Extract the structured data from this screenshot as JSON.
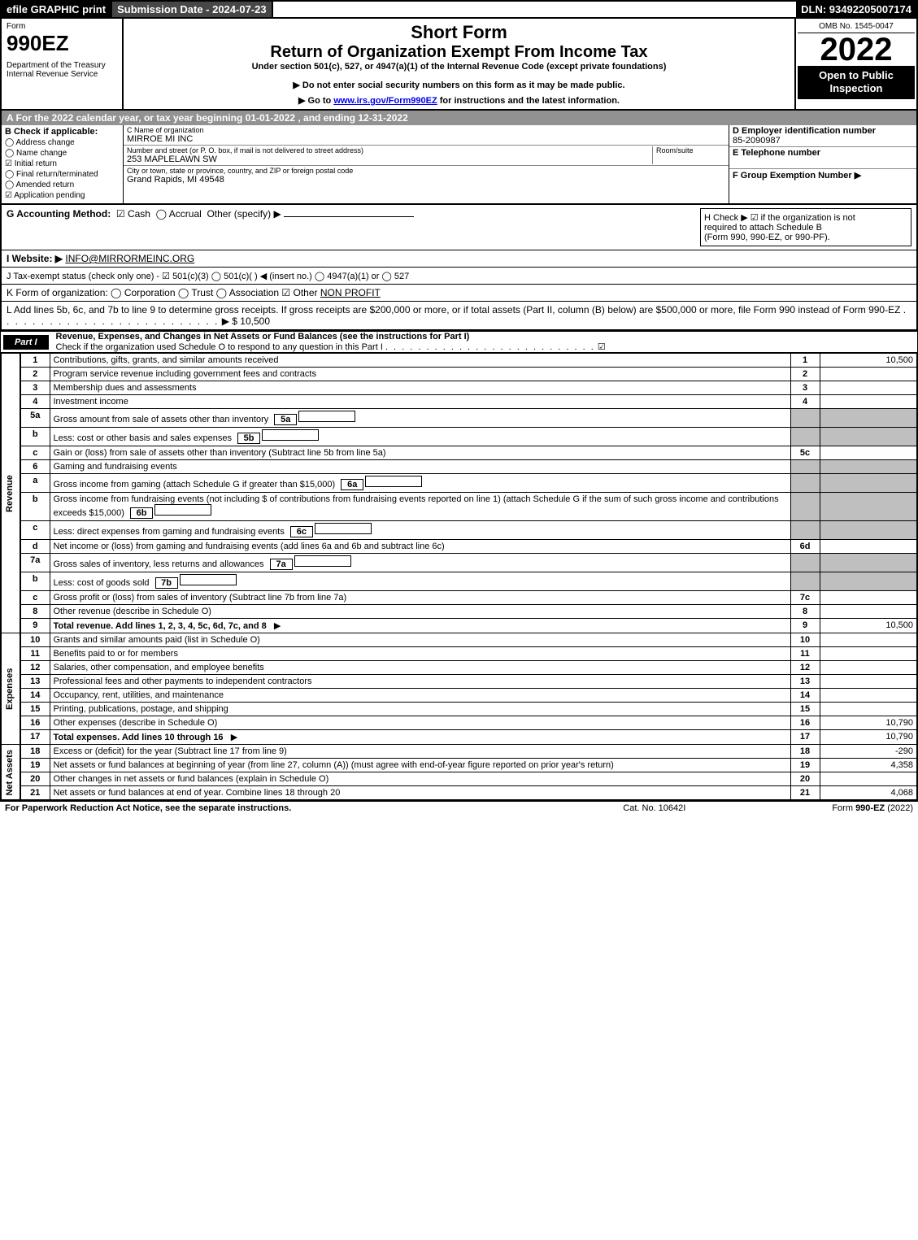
{
  "topbar": {
    "efile": "efile GRAPHIC print",
    "submission": "Submission Date - 2024-07-23",
    "dln": "DLN: 93492205007174"
  },
  "header": {
    "form_word": "Form",
    "form_number": "990EZ",
    "dept": "Department of the Treasury\nInternal Revenue Service",
    "title_short": "Short Form",
    "title_long": "Return of Organization Exempt From Income Tax",
    "subtitle": "Under section 501(c), 527, or 4947(a)(1) of the Internal Revenue Code (except private foundations)",
    "warn1": "▶ Do not enter social security numbers on this form as it may be made public.",
    "warn2": "▶ Go to www.irs.gov/Form990EZ for instructions and the latest information.",
    "omb": "OMB No. 1545-0047",
    "year": "2022",
    "badge": "Open to Public Inspection"
  },
  "section_a": "A  For the 2022 calendar year, or tax year beginning 01-01-2022 , and ending 12-31-2022",
  "b": {
    "title": "B  Check if applicable:",
    "opts": [
      "Address change",
      "Name change",
      "Initial return",
      "Final return/terminated",
      "Amended return",
      "Application pending"
    ],
    "checked": [
      false,
      false,
      true,
      false,
      false,
      true
    ]
  },
  "c": {
    "name_hint": "C Name of organization",
    "name": "MIRROE MI INC",
    "street_hint": "Number and street (or P. O. box, if mail is not delivered to street address)",
    "room_hint": "Room/suite",
    "street": "253 MAPLELAWN SW",
    "city_hint": "City or town, state or province, country, and ZIP or foreign postal code",
    "city": "Grand Rapids, MI  49548"
  },
  "d": {
    "ein_label": "D Employer identification number",
    "ein": "85-2090987",
    "tel_label": "E Telephone number",
    "grp_label": "F Group Exemption Number   ▶"
  },
  "g": {
    "label": "G Accounting Method:",
    "cash": "Cash",
    "accrual": "Accrual",
    "other": "Other (specify) ▶",
    "cash_checked": true
  },
  "h": {
    "text1": "H  Check ▶ ☑ if the organization is not",
    "text2": "required to attach Schedule B",
    "text3": "(Form 990, 990-EZ, or 990-PF)."
  },
  "i": {
    "label": "I Website: ▶",
    "value": "INFO@MIRRORMEINC.ORG"
  },
  "j": {
    "label": "J Tax-exempt status (check only one) - ☑ 501(c)(3) ◯ 501(c)(  ) ◀ (insert no.) ◯ 4947(a)(1) or ◯ 527"
  },
  "k": {
    "label": "K Form of organization:  ◯ Corporation  ◯ Trust  ◯ Association  ☑ Other",
    "other": "NON PROFIT"
  },
  "l": {
    "text": "L Add lines 5b, 6c, and 7b to line 9 to determine gross receipts. If gross receipts are $200,000 or more, or if total assets (Part II, column (B) below) are $500,000 or more, file Form 990 instead of Form 990-EZ",
    "arrow": "▶ $ 10,500"
  },
  "part1": {
    "tab": "Part I",
    "title": "Revenue, Expenses, and Changes in Net Assets or Fund Balances (see the instructions for Part I)",
    "subtitle": "Check if the organization used Schedule O to respond to any question in this Part I",
    "checked": "☑"
  },
  "sides": {
    "revenue": "Revenue",
    "expenses": "Expenses",
    "net": "Net Assets"
  },
  "lines": [
    {
      "n": "1",
      "desc": "Contributions, gifts, grants, and similar amounts received",
      "k": "1",
      "v": "10,500"
    },
    {
      "n": "2",
      "desc": "Program service revenue including government fees and contracts",
      "k": "2",
      "v": ""
    },
    {
      "n": "3",
      "desc": "Membership dues and assessments",
      "k": "3",
      "v": ""
    },
    {
      "n": "4",
      "desc": "Investment income",
      "k": "4",
      "v": ""
    },
    {
      "n": "5a",
      "desc": "Gross amount from sale of assets other than inventory",
      "sub": "5a",
      "grey": true
    },
    {
      "n": "b",
      "desc": "Less: cost or other basis and sales expenses",
      "sub": "5b",
      "grey": true
    },
    {
      "n": "c",
      "desc": "Gain or (loss) from sale of assets other than inventory (Subtract line 5b from line 5a)",
      "k": "5c",
      "v": ""
    },
    {
      "n": "6",
      "desc": "Gaming and fundraising events",
      "grey": true,
      "nokey": true
    },
    {
      "n": "a",
      "desc": "Gross income from gaming (attach Schedule G if greater than $15,000)",
      "sub": "6a",
      "grey": true
    },
    {
      "n": "b",
      "desc": "Gross income from fundraising events (not including $                      of contributions from fundraising events reported on line 1) (attach Schedule G if the sum of such gross income and contributions exceeds $15,000)",
      "sub": "6b",
      "grey": true
    },
    {
      "n": "c",
      "desc": "Less: direct expenses from gaming and fundraising events",
      "sub": "6c",
      "grey": true
    },
    {
      "n": "d",
      "desc": "Net income or (loss) from gaming and fundraising events (add lines 6a and 6b and subtract line 6c)",
      "k": "6d",
      "v": ""
    },
    {
      "n": "7a",
      "desc": "Gross sales of inventory, less returns and allowances",
      "sub": "7a",
      "grey": true
    },
    {
      "n": "b",
      "desc": "Less: cost of goods sold",
      "sub": "7b",
      "grey": true
    },
    {
      "n": "c",
      "desc": "Gross profit or (loss) from sales of inventory (Subtract line 7b from line 7a)",
      "k": "7c",
      "v": ""
    },
    {
      "n": "8",
      "desc": "Other revenue (describe in Schedule O)",
      "k": "8",
      "v": ""
    },
    {
      "n": "9",
      "desc": "Total revenue. Add lines 1, 2, 3, 4, 5c, 6d, 7c, and 8",
      "k": "9",
      "v": "10,500",
      "bold": true,
      "arrow": true
    }
  ],
  "exp": [
    {
      "n": "10",
      "desc": "Grants and similar amounts paid (list in Schedule O)",
      "k": "10",
      "v": ""
    },
    {
      "n": "11",
      "desc": "Benefits paid to or for members",
      "k": "11",
      "v": ""
    },
    {
      "n": "12",
      "desc": "Salaries, other compensation, and employee benefits",
      "k": "12",
      "v": ""
    },
    {
      "n": "13",
      "desc": "Professional fees and other payments to independent contractors",
      "k": "13",
      "v": ""
    },
    {
      "n": "14",
      "desc": "Occupancy, rent, utilities, and maintenance",
      "k": "14",
      "v": ""
    },
    {
      "n": "15",
      "desc": "Printing, publications, postage, and shipping",
      "k": "15",
      "v": ""
    },
    {
      "n": "16",
      "desc": "Other expenses (describe in Schedule O)",
      "k": "16",
      "v": "10,790"
    },
    {
      "n": "17",
      "desc": "Total expenses. Add lines 10 through 16",
      "k": "17",
      "v": "10,790",
      "bold": true,
      "arrow": true
    }
  ],
  "net": [
    {
      "n": "18",
      "desc": "Excess or (deficit) for the year (Subtract line 17 from line 9)",
      "k": "18",
      "v": "-290"
    },
    {
      "n": "19",
      "desc": "Net assets or fund balances at beginning of year (from line 27, column (A)) (must agree with end-of-year figure reported on prior year's return)",
      "k": "19",
      "v": "4,358",
      "tall": true
    },
    {
      "n": "20",
      "desc": "Other changes in net assets or fund balances (explain in Schedule O)",
      "k": "20",
      "v": ""
    },
    {
      "n": "21",
      "desc": "Net assets or fund balances at end of year. Combine lines 18 through 20",
      "k": "21",
      "v": "4,068"
    }
  ],
  "footer": {
    "left": "For Paperwork Reduction Act Notice, see the separate instructions.",
    "mid": "Cat. No. 10642I",
    "right": "Form 990-EZ (2022)"
  }
}
